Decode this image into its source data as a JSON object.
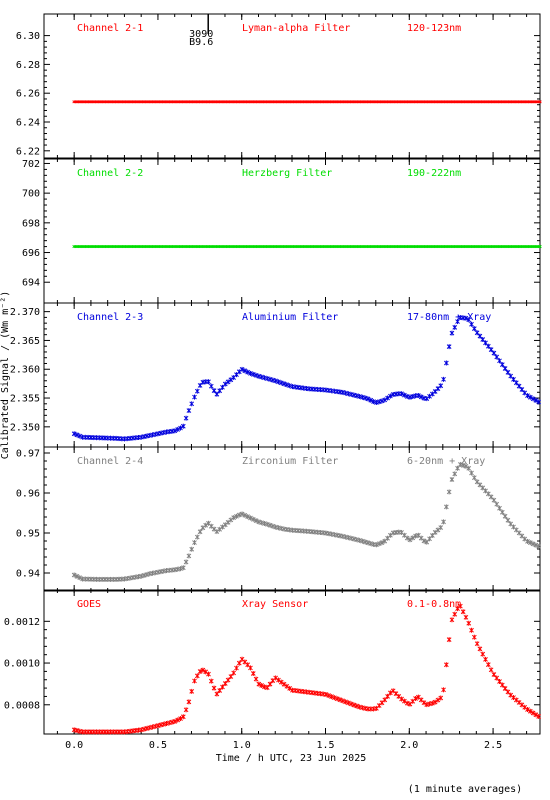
{
  "x_axis": {
    "label": "Time / h UTC, 23 Jun 2025",
    "range": [
      -0.18,
      2.78
    ],
    "ticks": [
      "0.0",
      "0.5",
      "1.0",
      "1.5",
      "2.0",
      "2.5"
    ],
    "tick_values": [
      0,
      0.5,
      1.0,
      1.5,
      2.0,
      2.5
    ]
  },
  "y_axis_label": "Calibrated Signal / (Wm m⁻²)",
  "footnote": "(1 minute averages)",
  "marker": {
    "x": 0.8,
    "label1": "3090",
    "label2": "B9.6"
  },
  "chart_data": [
    {
      "type": "scatter",
      "channel": "Channel 2-1",
      "filter": "Lyman-alpha Filter",
      "band": "120-123nm",
      "color": "#ff0000",
      "ylim": [
        6.215,
        6.315
      ],
      "yticks": [
        6.22,
        6.24,
        6.26,
        6.28,
        6.3
      ],
      "yticklabels": [
        "6.22",
        "6.24",
        "6.26",
        "6.28",
        "6.30"
      ],
      "x": [
        0,
        0.5,
        1.0,
        1.5,
        2.0,
        2.5,
        2.78
      ],
      "y": [
        6.254,
        6.254,
        6.254,
        6.254,
        6.254,
        6.254,
        6.254
      ]
    },
    {
      "type": "scatter",
      "channel": "Channel 2-2",
      "filter": "Herzberg Filter",
      "band": "190-222nm",
      "color": "#00dd00",
      "ylim": [
        692.6,
        702.3
      ],
      "yticks": [
        694,
        696,
        698,
        700,
        702
      ],
      "yticklabels": [
        "694",
        "696",
        "698",
        "700",
        "702"
      ],
      "x": [
        0,
        0.5,
        1.0,
        1.5,
        2.0,
        2.5,
        2.78
      ],
      "y": [
        696.4,
        696.4,
        696.4,
        696.4,
        696.4,
        696.4,
        696.4
      ]
    },
    {
      "type": "scatter",
      "channel": "Channel 2-3",
      "filter": "Aluminium Filter",
      "band": "17-80nm + Xray",
      "color": "#0000dd",
      "ylim": [
        2.3465,
        2.3715
      ],
      "yticks": [
        2.35,
        2.355,
        2.36,
        2.365,
        2.37
      ],
      "yticklabels": [
        "2.350",
        "2.355",
        "2.360",
        "2.365",
        "2.370"
      ],
      "x": [
        0,
        0.05,
        0.15,
        0.25,
        0.3,
        0.4,
        0.45,
        0.55,
        0.6,
        0.65,
        0.68,
        0.72,
        0.76,
        0.8,
        0.85,
        0.9,
        0.95,
        1.0,
        1.05,
        1.1,
        1.15,
        1.2,
        1.25,
        1.3,
        1.4,
        1.5,
        1.6,
        1.7,
        1.75,
        1.8,
        1.85,
        1.9,
        1.95,
        2.0,
        2.05,
        2.1,
        2.15,
        2.2,
        2.25,
        2.3,
        2.35,
        2.4,
        2.5,
        2.6,
        2.7,
        2.78
      ],
      "y": [
        2.3488,
        2.3482,
        2.3481,
        2.348,
        2.3479,
        2.3482,
        2.3485,
        2.3491,
        2.3493,
        2.35,
        2.3525,
        2.3553,
        2.3577,
        2.3579,
        2.3556,
        2.3574,
        2.3585,
        2.36,
        2.3593,
        2.3588,
        2.3584,
        2.358,
        2.3575,
        2.357,
        2.3566,
        2.3564,
        2.356,
        2.3553,
        2.3549,
        2.3542,
        2.3546,
        2.3556,
        2.3558,
        2.3551,
        2.3555,
        2.3548,
        2.356,
        2.3575,
        2.366,
        2.369,
        2.3688,
        2.3665,
        2.363,
        2.359,
        2.3555,
        2.3542
      ]
    },
    {
      "type": "scatter",
      "channel": "Channel 2-4",
      "filter": "Zirconium Filter",
      "band": "6-20nm + Xray",
      "color": "#808080",
      "ylim": [
        0.9355,
        0.9715
      ],
      "yticks": [
        0.94,
        0.95,
        0.96,
        0.97
      ],
      "yticklabels": [
        "0.94",
        "0.95",
        "0.96",
        "0.97"
      ],
      "x": [
        0,
        0.05,
        0.15,
        0.25,
        0.3,
        0.4,
        0.45,
        0.55,
        0.6,
        0.65,
        0.68,
        0.72,
        0.76,
        0.8,
        0.85,
        0.9,
        0.95,
        1.0,
        1.05,
        1.1,
        1.15,
        1.2,
        1.25,
        1.3,
        1.4,
        1.5,
        1.6,
        1.7,
        1.75,
        1.8,
        1.85,
        1.9,
        1.95,
        2.0,
        2.05,
        2.1,
        2.15,
        2.2,
        2.25,
        2.3,
        2.35,
        2.4,
        2.5,
        2.6,
        2.7,
        2.78
      ],
      "y": [
        0.9395,
        0.9385,
        0.9384,
        0.9384,
        0.9385,
        0.9392,
        0.9398,
        0.9406,
        0.9408,
        0.9412,
        0.9438,
        0.9478,
        0.951,
        0.9525,
        0.9503,
        0.952,
        0.9538,
        0.9548,
        0.9538,
        0.9528,
        0.9522,
        0.9515,
        0.951,
        0.9507,
        0.9504,
        0.95,
        0.9492,
        0.9482,
        0.9476,
        0.947,
        0.9478,
        0.95,
        0.9503,
        0.9482,
        0.9496,
        0.9475,
        0.95,
        0.9518,
        0.963,
        0.9672,
        0.9665,
        0.963,
        0.9585,
        0.9525,
        0.948,
        0.9465
      ]
    },
    {
      "type": "scatter",
      "channel": "GOES",
      "filter": "Xray Sensor",
      "band": "0.1-0.8nm",
      "color": "#ff0000",
      "ylim": [
        0.00066,
        0.00135
      ],
      "yticks": [
        0.0008,
        0.001,
        0.0012
      ],
      "yticklabels": [
        "0.0008",
        "0.0010",
        "0.0012"
      ],
      "x": [
        0,
        0.05,
        0.15,
        0.25,
        0.3,
        0.4,
        0.45,
        0.55,
        0.6,
        0.65,
        0.68,
        0.72,
        0.76,
        0.8,
        0.85,
        0.9,
        0.95,
        1.0,
        1.05,
        1.1,
        1.15,
        1.2,
        1.25,
        1.3,
        1.4,
        1.5,
        1.6,
        1.7,
        1.75,
        1.8,
        1.85,
        1.9,
        1.95,
        2.0,
        2.05,
        2.1,
        2.15,
        2.2,
        2.25,
        2.3,
        2.35,
        2.4,
        2.5,
        2.6,
        2.7,
        2.78
      ],
      "y": [
        0.00068,
        0.00067,
        0.00067,
        0.00067,
        0.00067,
        0.00068,
        0.00069,
        0.00071,
        0.00072,
        0.00074,
        0.0008,
        0.00092,
        0.00097,
        0.00095,
        0.00085,
        0.0009,
        0.00095,
        0.00102,
        0.00098,
        0.0009,
        0.00088,
        0.00093,
        0.0009,
        0.00087,
        0.00086,
        0.00085,
        0.00082,
        0.00079,
        0.00078,
        0.00078,
        0.00082,
        0.00087,
        0.00083,
        0.0008,
        0.00084,
        0.0008,
        0.00081,
        0.00084,
        0.0012,
        0.00128,
        0.0012,
        0.0011,
        0.00095,
        0.00085,
        0.00078,
        0.00074
      ]
    }
  ]
}
